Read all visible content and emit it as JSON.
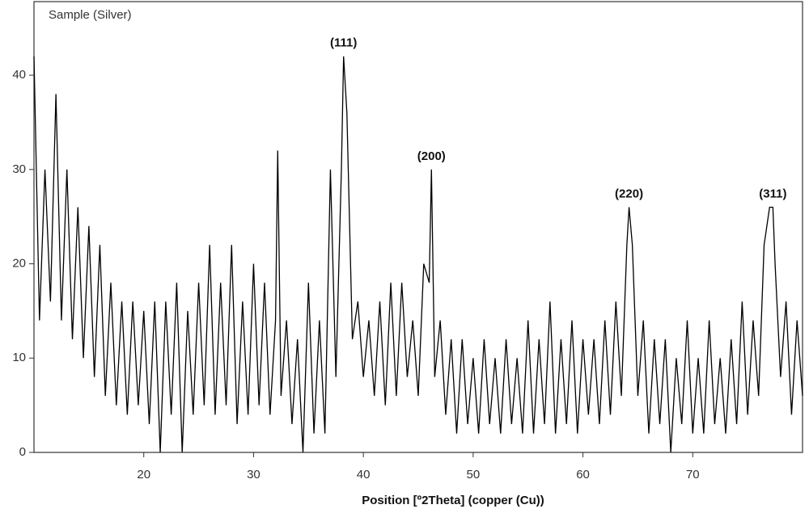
{
  "chart_data": {
    "type": "line",
    "title": "Sample (Silver)",
    "x_label": "Position [º2Theta] (copper (Cu))",
    "xlim": [
      10,
      80
    ],
    "ylim": [
      0,
      47.8
    ],
    "xticks": [
      20,
      30,
      40,
      50,
      60,
      70
    ],
    "yticks": [
      0,
      10,
      20,
      30,
      40
    ],
    "color": "#000000",
    "annotations": [
      {
        "text": "(111)",
        "x": 38.2,
        "y": 42
      },
      {
        "text": "(200)",
        "x": 46.2,
        "y": 30
      },
      {
        "text": "(220)",
        "x": 64.2,
        "y": 26
      },
      {
        "text": "(311)",
        "x": 77.3,
        "y": 26
      }
    ],
    "x": [
      10,
      10.5,
      11,
      11.5,
      12,
      12.5,
      13,
      13.5,
      14,
      14.5,
      15,
      15.5,
      16,
      16.5,
      17,
      17.5,
      18,
      18.5,
      19,
      19.5,
      20,
      20.5,
      21,
      21.5,
      22,
      22.5,
      23,
      23.5,
      24,
      24.5,
      25,
      25.5,
      26,
      26.5,
      27,
      27.5,
      28,
      28.5,
      29,
      29.5,
      30,
      30.5,
      31,
      31.5,
      32,
      32.2,
      32.5,
      33,
      33.5,
      34,
      34.5,
      35,
      35.5,
      36,
      36.5,
      37,
      37.5,
      38,
      38.2,
      38.5,
      39,
      39.5,
      40,
      40.5,
      41,
      41.5,
      42,
      42.5,
      43,
      43.5,
      44,
      44.5,
      45,
      45.5,
      46,
      46.2,
      46.5,
      47,
      47.5,
      48,
      48.5,
      49,
      49.5,
      50,
      50.5,
      51,
      51.5,
      52,
      52.5,
      53,
      53.5,
      54,
      54.5,
      55,
      55.5,
      56,
      56.5,
      57,
      57.5,
      58,
      58.5,
      59,
      59.5,
      60,
      60.5,
      61,
      61.5,
      62,
      62.5,
      63,
      63.5,
      64,
      64.2,
      64.5,
      65,
      65.5,
      66,
      66.5,
      67,
      67.5,
      68,
      68.5,
      69,
      69.5,
      70,
      70.5,
      71,
      71.5,
      72,
      72.5,
      73,
      73.5,
      74,
      74.5,
      75,
      75.5,
      76,
      76.5,
      77,
      77.3,
      77.5,
      78,
      78.5,
      79,
      79.5,
      80
    ],
    "values": [
      42,
      14,
      30,
      16,
      38,
      14,
      30,
      12,
      26,
      10,
      24,
      8,
      22,
      6,
      18,
      5,
      16,
      4,
      16,
      5,
      15,
      3,
      16,
      0,
      16,
      4,
      18,
      0,
      15,
      4,
      18,
      5,
      22,
      4,
      18,
      5,
      22,
      3,
      16,
      4,
      20,
      5,
      18,
      4,
      14,
      32,
      6,
      14,
      3,
      12,
      0,
      18,
      2,
      14,
      2,
      30,
      8,
      30,
      42,
      36,
      12,
      16,
      8,
      14,
      6,
      16,
      5,
      18,
      6,
      18,
      8,
      14,
      6,
      20,
      18,
      30,
      8,
      14,
      4,
      12,
      2,
      12,
      3,
      10,
      2,
      12,
      3,
      10,
      2,
      12,
      3,
      10,
      2,
      14,
      2,
      12,
      3,
      16,
      2,
      12,
      3,
      14,
      2,
      12,
      4,
      12,
      3,
      14,
      4,
      16,
      6,
      22,
      26,
      22,
      6,
      14,
      2,
      12,
      3,
      12,
      0,
      10,
      3,
      14,
      2,
      10,
      2,
      14,
      3,
      10,
      2,
      12,
      3,
      16,
      4,
      14,
      6,
      22,
      26,
      26,
      20,
      8,
      16,
      4,
      14,
      6
    ]
  }
}
